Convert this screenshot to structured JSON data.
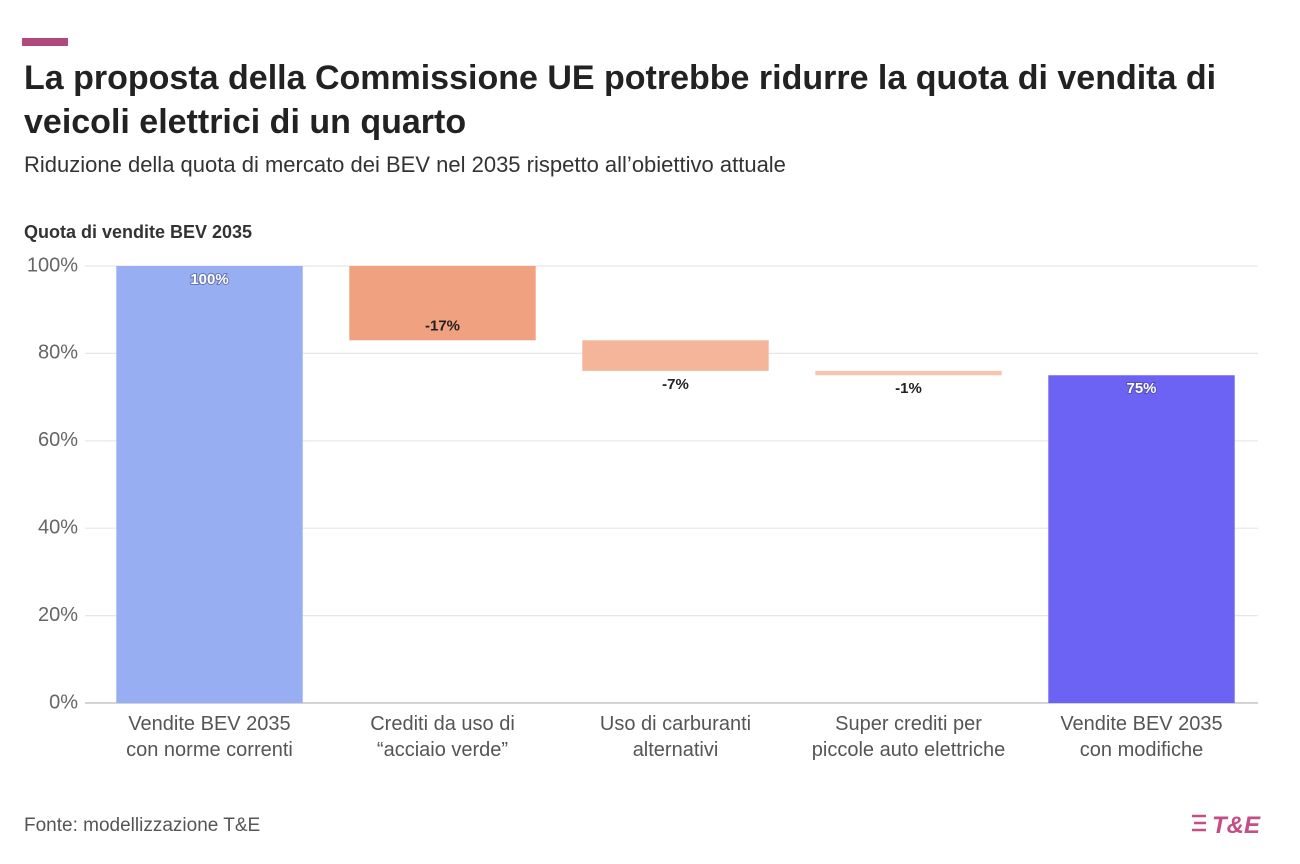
{
  "chart_data": {
    "type": "waterfall",
    "title": "La proposta della Commissione UE potrebbe ridurre la quota di vendita di veicoli elettrici di un quarto",
    "subtitle": "Riduzione della quota di mercato dei BEV nel 2035 rispetto all’obiettivo attuale",
    "y_axis_title": "Quota di vendite BEV 2035",
    "categories": [
      "Vendite BEV 2035 con norme correnti",
      "Crediti da uso di “acciaio verde”",
      "Uso di carburanti alternativi",
      "Super crediti per piccole auto elettriche",
      "Vendite BEV 2035 con modifiche"
    ],
    "values": [
      100,
      -17,
      -7,
      -1,
      75
    ],
    "value_labels": [
      "100%",
      "-17%",
      "-7%",
      "-1%",
      "75%"
    ],
    "measure": [
      "absolute",
      "relative",
      "relative",
      "relative",
      "total"
    ],
    "colors": [
      "#97aef2",
      "#f0a17f",
      "#f5b59b",
      "#f7c5af",
      "#6c63f5"
    ],
    "ylim": [
      0,
      100
    ],
    "yticks": [
      {
        "value": 0,
        "label": "0%"
      },
      {
        "value": 20,
        "label": "20%"
      },
      {
        "value": 40,
        "label": "40%"
      },
      {
        "value": 60,
        "label": "60%"
      },
      {
        "value": 80,
        "label": "80%"
      },
      {
        "value": 100,
        "label": "100%"
      }
    ],
    "grid": true,
    "source": "Fonte: modellizzazione T&E",
    "logo": "T&E"
  }
}
